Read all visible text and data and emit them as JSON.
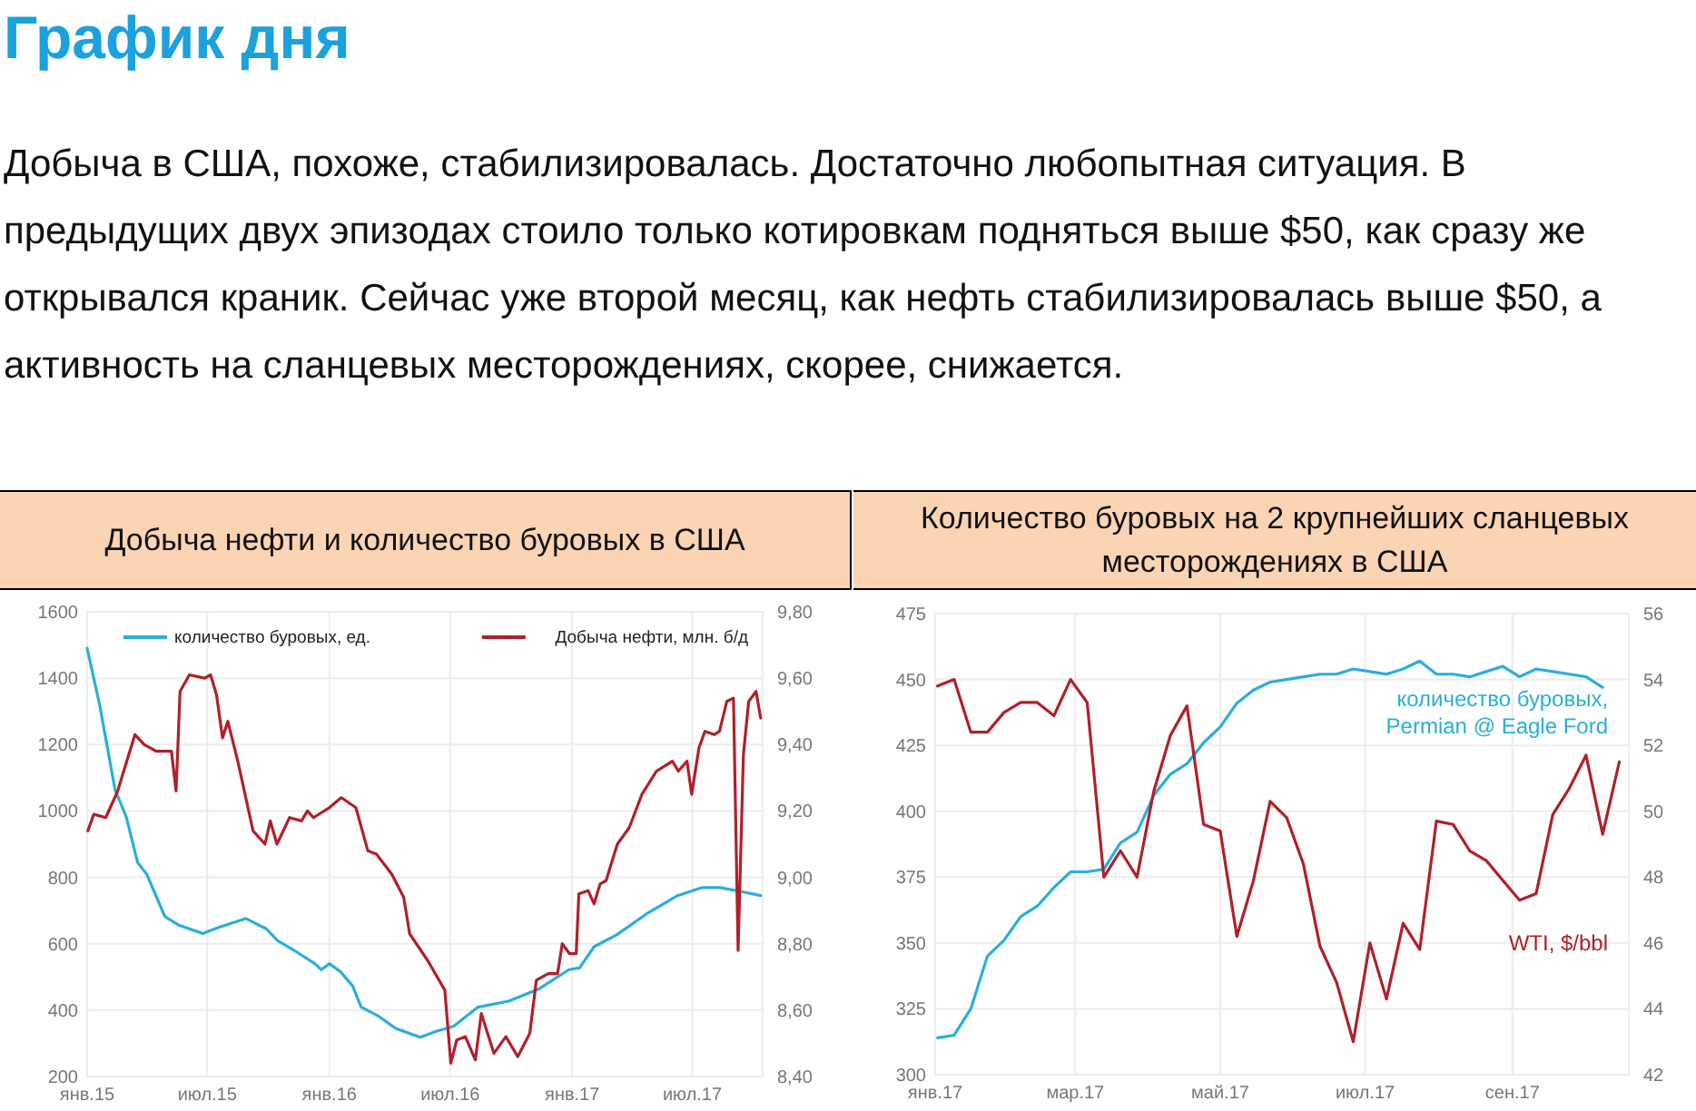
{
  "chart_data": [
    {
      "type": "other",
      "title": "График дня",
      "annotations": [
        "Добыча в США, похоже, стабилизировалась. Достаточно любопытная ситуация. В предыдущих двух эпизодах стоило только котировкам подняться выше $50, как сразу же открывался краник. Сейчас уже второй месяц, как нефть стабилизировалась выше $50, а активность на сланцевых месторождениях, скорее, снижается."
      ]
    },
    {
      "type": "line",
      "title": "Добыча нефти и количество буровых в США",
      "xlim": [
        "2015-01-01",
        "2017-10-15"
      ],
      "xticks": [
        {
          "value": "2015-01-01",
          "label": "янв.15"
        },
        {
          "value": "2015-07-01",
          "label": "июл.15"
        },
        {
          "value": "2016-01-01",
          "label": "янв.16"
        },
        {
          "value": "2016-07-01",
          "label": "июл.16"
        },
        {
          "value": "2017-01-01",
          "label": "янв.17"
        },
        {
          "value": "2017-07-01",
          "label": "июл.17"
        }
      ],
      "ylim": [
        200,
        1600
      ],
      "yticks": [
        200,
        400,
        600,
        800,
        1000,
        1200,
        1400,
        1600
      ],
      "y2lim": [
        8.4,
        9.8
      ],
      "y2ticks": [
        {
          "value": 8.4,
          "label": "8,40"
        },
        {
          "value": 8.6,
          "label": "8,60"
        },
        {
          "value": 8.8,
          "label": "8,80"
        },
        {
          "value": 9.0,
          "label": "9,00"
        },
        {
          "value": 9.2,
          "label": "9,20"
        },
        {
          "value": 9.4,
          "label": "9,40"
        },
        {
          "value": 9.6,
          "label": "9,60"
        },
        {
          "value": 9.8,
          "label": "9,80"
        }
      ],
      "grid": true,
      "legend": "top",
      "series": [
        {
          "name": "количество буровых, ед.",
          "color": "#2aaedc",
          "x": [
            "2015-01-01",
            "2015-01-20",
            "2015-02-12",
            "2015-03-01",
            "2015-03-18",
            "2015-04-01",
            "2015-04-28",
            "2015-05-20",
            "2015-06-24",
            "2015-07-18",
            "2015-08-28",
            "2015-09-28",
            "2015-10-15",
            "2015-11-12",
            "2015-12-10",
            "2015-12-20",
            "2016-01-01",
            "2016-01-18",
            "2016-02-05",
            "2016-02-18",
            "2016-03-15",
            "2016-04-10",
            "2016-05-17",
            "2016-06-10",
            "2016-07-06",
            "2016-08-12",
            "2016-09-27",
            "2016-11-12",
            "2016-12-27",
            "2017-01-12",
            "2017-02-03",
            "2017-03-09",
            "2017-04-24",
            "2017-06-09",
            "2017-07-15",
            "2017-08-12",
            "2017-09-18",
            "2017-10-12"
          ],
          "values": [
            1490,
            1318,
            1064,
            982,
            845,
            809,
            682,
            655,
            631,
            649,
            676,
            645,
            609,
            576,
            540,
            522,
            540,
            515,
            473,
            409,
            382,
            345,
            318,
            336,
            351,
            409,
            427,
            464,
            522,
            527,
            591,
            627,
            691,
            745,
            769,
            769,
            755,
            745
          ]
        },
        {
          "name": "Добыча нефти, млн. б/д",
          "color": "#b0202a",
          "axis": "y2",
          "x": [
            "2015-01-02",
            "2015-01-11",
            "2015-01-29",
            "2015-02-16",
            "2015-03-14",
            "2015-03-28",
            "2015-04-15",
            "2015-05-08",
            "2015-05-15",
            "2015-05-21",
            "2015-06-04",
            "2015-06-27",
            "2015-07-06",
            "2015-07-15",
            "2015-07-24",
            "2015-08-01",
            "2015-08-16",
            "2015-09-08",
            "2015-09-26",
            "2015-10-04",
            "2015-10-14",
            "2015-11-02",
            "2015-11-20",
            "2015-11-29",
            "2015-12-08",
            "2016-01-01",
            "2016-01-19",
            "2016-02-10",
            "2016-02-28",
            "2016-03-12",
            "2016-04-04",
            "2016-04-22",
            "2016-05-01",
            "2016-05-28",
            "2016-06-23",
            "2016-07-02",
            "2016-07-11",
            "2016-07-24",
            "2016-08-08",
            "2016-08-17",
            "2016-09-05",
            "2016-09-23",
            "2016-10-11",
            "2016-10-29",
            "2016-11-08",
            "2016-11-26",
            "2016-12-10",
            "2016-12-17",
            "2016-12-28",
            "2017-01-07",
            "2017-01-11",
            "2017-01-25",
            "2017-02-03",
            "2017-02-12",
            "2017-02-21",
            "2017-03-10",
            "2017-03-28",
            "2017-04-16",
            "2017-05-08",
            "2017-06-01",
            "2017-06-10",
            "2017-06-23",
            "2017-06-30",
            "2017-07-11",
            "2017-07-20",
            "2017-08-03",
            "2017-08-11",
            "2017-08-22",
            "2017-09-01",
            "2017-09-08",
            "2017-09-16",
            "2017-09-24",
            "2017-10-05",
            "2017-10-12"
          ],
          "values": [
            9.14,
            9.19,
            9.18,
            9.26,
            9.43,
            9.4,
            9.38,
            9.38,
            9.26,
            9.56,
            9.61,
            9.6,
            9.61,
            9.55,
            9.42,
            9.47,
            9.35,
            9.14,
            9.1,
            9.17,
            9.1,
            9.18,
            9.17,
            9.2,
            9.18,
            9.21,
            9.24,
            9.21,
            9.08,
            9.07,
            9.01,
            8.94,
            8.83,
            8.75,
            8.66,
            8.44,
            8.51,
            8.52,
            8.45,
            8.59,
            8.47,
            8.52,
            8.46,
            8.53,
            8.69,
            8.71,
            8.71,
            8.8,
            8.77,
            8.77,
            8.95,
            8.96,
            8.92,
            8.98,
            8.99,
            9.1,
            9.15,
            9.25,
            9.32,
            9.35,
            9.32,
            9.35,
            9.25,
            9.39,
            9.44,
            9.43,
            9.44,
            9.53,
            9.54,
            8.78,
            9.37,
            9.53,
            9.56,
            9.48
          ]
        }
      ]
    },
    {
      "type": "line",
      "title": "Количество буровых на 2 крупнейших сланцевых месторождениях в США",
      "xlim": [
        "2017-01-01",
        "2017-10-20"
      ],
      "xticks": [
        {
          "value": "2017-01-01",
          "label": "янв.17"
        },
        {
          "value": "2017-03-01",
          "label": "мар.17"
        },
        {
          "value": "2017-05-01",
          "label": "май.17"
        },
        {
          "value": "2017-07-01",
          "label": "июл.17"
        },
        {
          "value": "2017-09-01",
          "label": "сен.17"
        }
      ],
      "ylim": [
        300,
        475
      ],
      "yticks": [
        300,
        325,
        350,
        375,
        400,
        425,
        450,
        475
      ],
      "y2lim": [
        42,
        56
      ],
      "y2ticks": [
        42,
        44,
        46,
        48,
        50,
        52,
        54,
        56
      ],
      "grid": true,
      "x": [
        "2017-01-02",
        "2017-01-09",
        "2017-01-16",
        "2017-01-23",
        "2017-01-30",
        "2017-02-06",
        "2017-02-13",
        "2017-02-20",
        "2017-02-27",
        "2017-03-06",
        "2017-03-13",
        "2017-03-20",
        "2017-03-27",
        "2017-04-03",
        "2017-04-10",
        "2017-04-17",
        "2017-04-24",
        "2017-05-01",
        "2017-05-08",
        "2017-05-15",
        "2017-05-22",
        "2017-05-29",
        "2017-06-05",
        "2017-06-12",
        "2017-06-19",
        "2017-06-26",
        "2017-07-03",
        "2017-07-10",
        "2017-07-17",
        "2017-07-24",
        "2017-07-31",
        "2017-08-07",
        "2017-08-14",
        "2017-08-21",
        "2017-08-28",
        "2017-09-04",
        "2017-09-11",
        "2017-09-18",
        "2017-09-25",
        "2017-10-02",
        "2017-10-09",
        "2017-10-16"
      ],
      "series": [
        {
          "name": "количество буровых,\nPermian @ Eagle Ford",
          "color": "#2aaedc",
          "values": [
            314,
            315,
            325,
            345,
            351,
            360,
            364,
            371,
            377,
            377,
            378,
            388,
            392,
            406,
            414,
            418,
            426,
            432,
            441,
            446,
            449,
            450,
            451,
            452,
            452,
            454,
            453,
            452,
            454,
            457,
            452,
            452,
            451,
            453,
            455,
            451,
            454,
            453,
            452,
            451,
            447,
            null
          ]
        },
        {
          "name": "WTI, $/bbl",
          "color": "#b0202a",
          "axis": "y2",
          "values": [
            53.8,
            54.0,
            52.4,
            52.4,
            53.0,
            53.3,
            53.3,
            52.9,
            54.0,
            53.3,
            48.0,
            48.8,
            48.0,
            50.6,
            52.3,
            53.2,
            49.6,
            49.4,
            46.2,
            47.9,
            50.3,
            49.8,
            48.4,
            45.9,
            44.8,
            43.0,
            46.0,
            44.3,
            46.6,
            45.8,
            49.7,
            49.6,
            48.8,
            48.5,
            47.9,
            47.3,
            47.5,
            49.9,
            50.7,
            51.7,
            49.3,
            51.5
          ]
        }
      ]
    }
  ]
}
